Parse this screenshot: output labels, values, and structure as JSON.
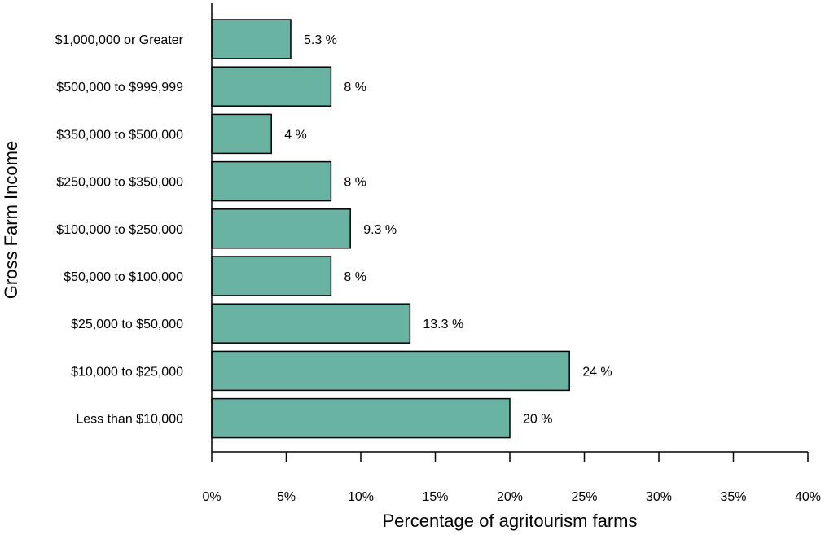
{
  "chart_data": {
    "type": "bar",
    "orientation": "horizontal",
    "categories": [
      "$1,000,000 or Greater",
      "$500,000 to $999,999",
      "$350,000 to $500,000",
      "$250,000 to $350,000",
      "$100,000 to $250,000",
      "$50,000 to $100,000",
      "$25,000 to $50,000",
      "$10,000 to $25,000",
      "Less than $10,000"
    ],
    "values": [
      5.3,
      8,
      4,
      8,
      9.3,
      8,
      13.3,
      24,
      20
    ],
    "data_labels": [
      "5.3 %",
      "8 %",
      "4 %",
      "8 %",
      "9.3 %",
      "8 %",
      "13.3 %",
      "24 %",
      "20 %"
    ],
    "xlabel": "Percentage of agritourism farms",
    "ylabel": "Gross Farm Income",
    "xlim": [
      0,
      40
    ],
    "xticks": [
      0,
      5,
      10,
      15,
      20,
      25,
      30,
      35,
      40
    ],
    "xtick_labels": [
      "0%",
      "5%",
      "10%",
      "15%",
      "20%",
      "25%",
      "30%",
      "35%",
      "40%"
    ],
    "bar_color": "#69b3a2",
    "grid": false,
    "legend": "none"
  }
}
